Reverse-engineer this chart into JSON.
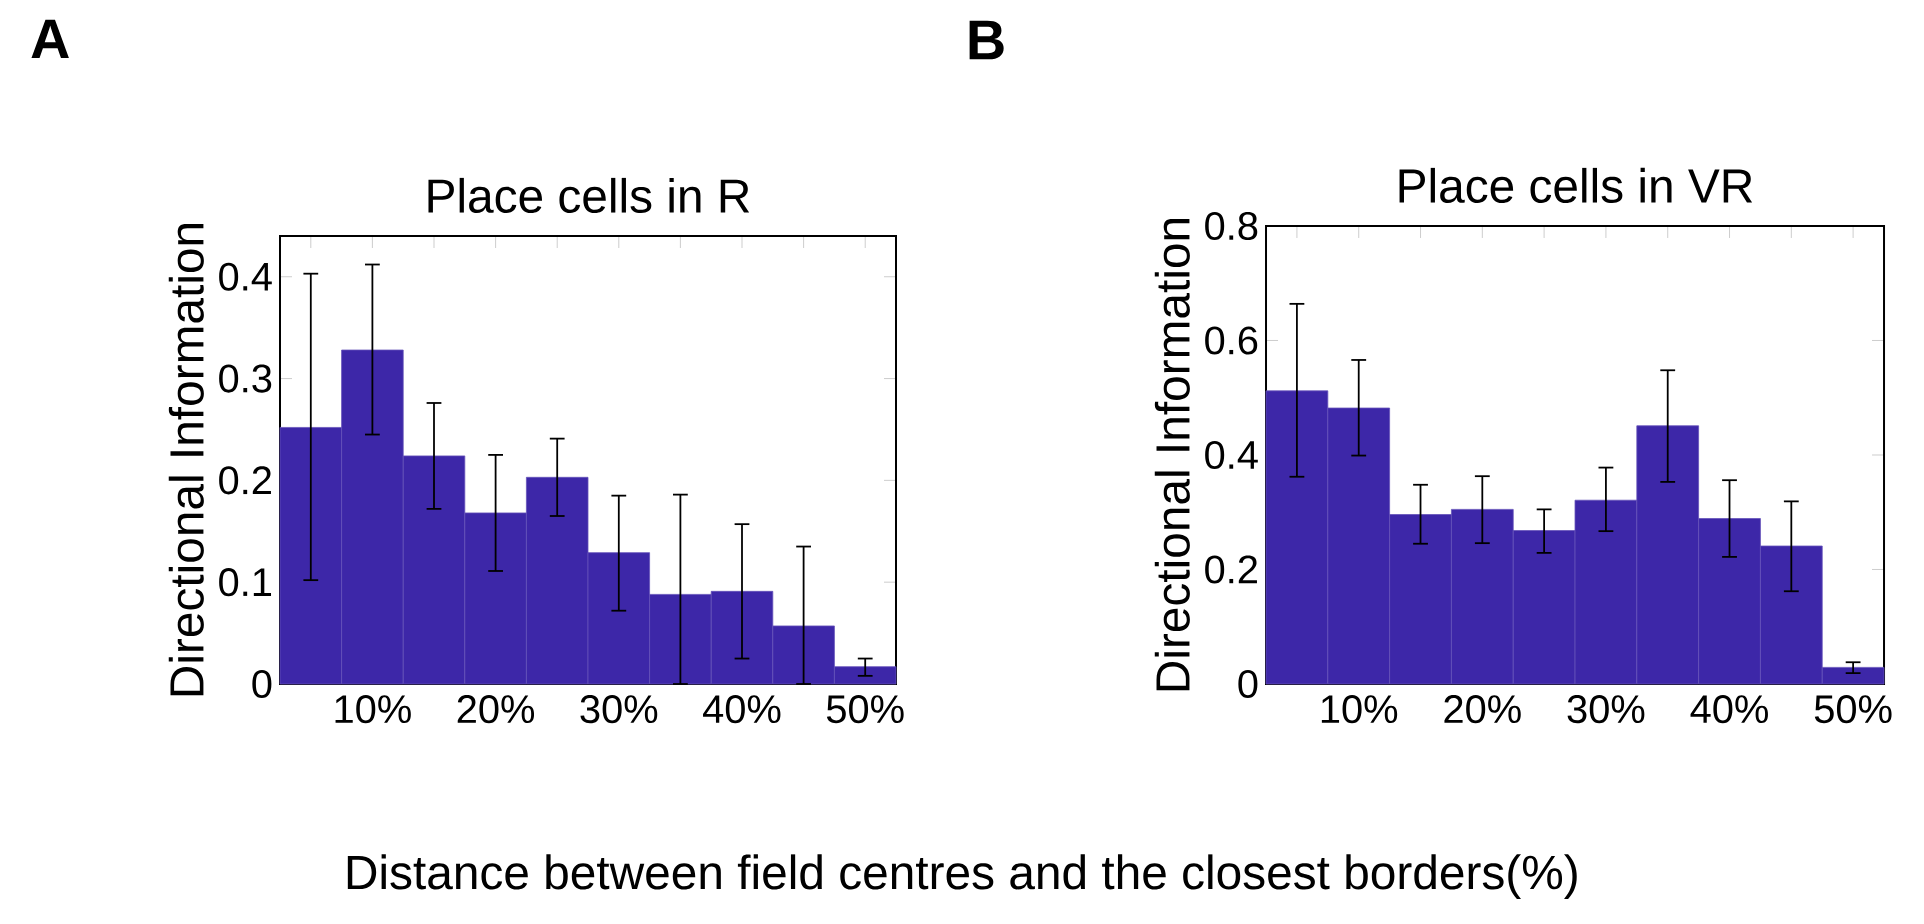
{
  "chart_data": [
    {
      "type": "histogram",
      "title": "Place cells in R",
      "xlabel": "Distance between field centres and the closest borders(%)",
      "ylabel": "Directional Information",
      "annotations": [
        "A"
      ],
      "color": "#3d27a8",
      "bins": [
        2.5,
        7.5,
        12.5,
        17.5,
        22.5,
        27.5,
        32.5,
        37.5,
        42.5,
        47.5,
        52.5
      ],
      "values": [
        0.252,
        0.328,
        0.224,
        0.168,
        0.203,
        0.129,
        0.088,
        0.091,
        0.057,
        0.017
      ],
      "errors": [
        [
          0.102,
          0.403
        ],
        [
          0.245,
          0.412
        ],
        [
          0.172,
          0.276
        ],
        [
          0.111,
          0.225
        ],
        [
          0.165,
          0.241
        ],
        [
          0.072,
          0.185
        ],
        [
          0,
          0.186
        ],
        [
          0.025,
          0.157
        ],
        [
          0,
          0.135
        ],
        [
          0.008,
          0.025
        ]
      ],
      "xlim": [
        2.5,
        52.5
      ],
      "ylim": [
        0,
        0.44
      ],
      "xticks": [
        {
          "value": 5,
          "label": null
        },
        {
          "value": 10,
          "label": "10%"
        },
        {
          "value": 15,
          "label": null
        },
        {
          "value": 20,
          "label": "20%"
        },
        {
          "value": 25,
          "label": null
        },
        {
          "value": 30,
          "label": "30%"
        },
        {
          "value": 35,
          "label": null
        },
        {
          "value": 40,
          "label": "40%"
        },
        {
          "value": 45,
          "label": null
        },
        {
          "value": 50,
          "label": "50%"
        }
      ],
      "yticks": [
        0,
        0.1,
        0.2,
        0.3,
        0.4
      ]
    },
    {
      "type": "histogram",
      "title": "Place cells in VR",
      "ylabel": "Directional Information",
      "annotations": [
        "B"
      ],
      "color": "#3d27a8",
      "bins": [
        2.5,
        7.5,
        12.5,
        17.5,
        22.5,
        27.5,
        32.5,
        37.5,
        42.5,
        47.5,
        52.5
      ],
      "values": [
        0.512,
        0.482,
        0.296,
        0.305,
        0.268,
        0.321,
        0.451,
        0.289,
        0.241,
        0.029
      ],
      "errors": [
        [
          0.362,
          0.664
        ],
        [
          0.399,
          0.566
        ],
        [
          0.245,
          0.348
        ],
        [
          0.246,
          0.363
        ],
        [
          0.229,
          0.305
        ],
        [
          0.267,
          0.378
        ],
        [
          0.353,
          0.548
        ],
        [
          0.222,
          0.356
        ],
        [
          0.162,
          0.319
        ],
        [
          0.019,
          0.038
        ]
      ],
      "xlim": [
        2.5,
        52.5
      ],
      "ylim": [
        0,
        0.8
      ],
      "xticks": [
        {
          "value": 5,
          "label": null
        },
        {
          "value": 10,
          "label": "10%"
        },
        {
          "value": 15,
          "label": null
        },
        {
          "value": 20,
          "label": "20%"
        },
        {
          "value": 25,
          "label": null
        },
        {
          "value": 30,
          "label": "30%"
        },
        {
          "value": 35,
          "label": null
        },
        {
          "value": 40,
          "label": "40%"
        },
        {
          "value": 45,
          "label": null
        },
        {
          "value": 50,
          "label": "50%"
        }
      ],
      "yticks": [
        0,
        0.2,
        0.4,
        0.6,
        0.8
      ]
    }
  ]
}
